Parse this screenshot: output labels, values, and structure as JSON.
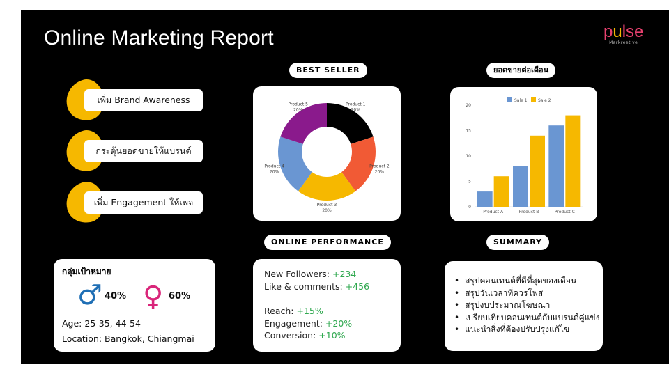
{
  "title": "Online Marketing Report",
  "logo": {
    "word_a": "p",
    "word_b": "u",
    "word_c": "lse",
    "sub": "Markreetive"
  },
  "goals": [
    {
      "label": "เพิ่ม Brand Awareness"
    },
    {
      "label": "กระตุ้นยอดขายให้แบรนด์"
    },
    {
      "label": "เพิ่ม Engagement ให้เพจ"
    }
  ],
  "headings": {
    "best_seller": "BEST SELLER",
    "monthly_sales": "ยอดขายต่อเดือน",
    "online_performance": "ONLINE PERFORMANCE",
    "summary": "SUMMARY"
  },
  "target": {
    "title": "กลุ่มเป้าหมาย",
    "male_pct": "40%",
    "female_pct": "60%",
    "age": "Age: 25-35, 44-54",
    "location": "Location: Bangkok, Chiangmai"
  },
  "performance": [
    {
      "label": "New Followers: ",
      "value": "+234"
    },
    {
      "label": "Like & comments: ",
      "value": "+456"
    },
    {
      "label": "Reach: ",
      "value": "+15%"
    },
    {
      "label": "Engagement: ",
      "value": "+20%"
    },
    {
      "label": "Conversion: ",
      "value": "+10%"
    }
  ],
  "summary": [
    "สรุปคอนเทนต์ที่ดีที่สุดของเดือน",
    "สรุปวันเวลาที่ควรโพส",
    "สรุปงบประมาณโฆษณา",
    "เปรียบเทียบคอนเทนต์กับแบรนด์คู่แข่ง",
    "แนะนำสิ่งที่ต้องปรับปรุงแก้ไข"
  ],
  "chart_data": [
    {
      "type": "pie",
      "categories": [
        "Product 1",
        "Product 2",
        "Product 3",
        "Product 4",
        "Product 5"
      ],
      "values": [
        20,
        20,
        20,
        20,
        20
      ],
      "value_labels": [
        "20%",
        "20%",
        "20%",
        "20%",
        "20%"
      ],
      "colors": [
        "#000000",
        "#f15a35",
        "#f6b800",
        "#6a96d2",
        "#8a1a8c"
      ]
    },
    {
      "type": "bar",
      "categories": [
        "Product A",
        "Product B",
        "Product C"
      ],
      "series": [
        {
          "name": "Sale 1",
          "values": [
            3,
            8,
            16
          ],
          "color": "#6a96d2"
        },
        {
          "name": "Sale 2",
          "values": [
            6,
            14,
            18
          ],
          "color": "#f6b800"
        }
      ],
      "yticks": [
        "0",
        "5",
        "10",
        "15",
        "20"
      ],
      "ylim": [
        0,
        20
      ],
      "grid": false,
      "legend": "top"
    }
  ]
}
